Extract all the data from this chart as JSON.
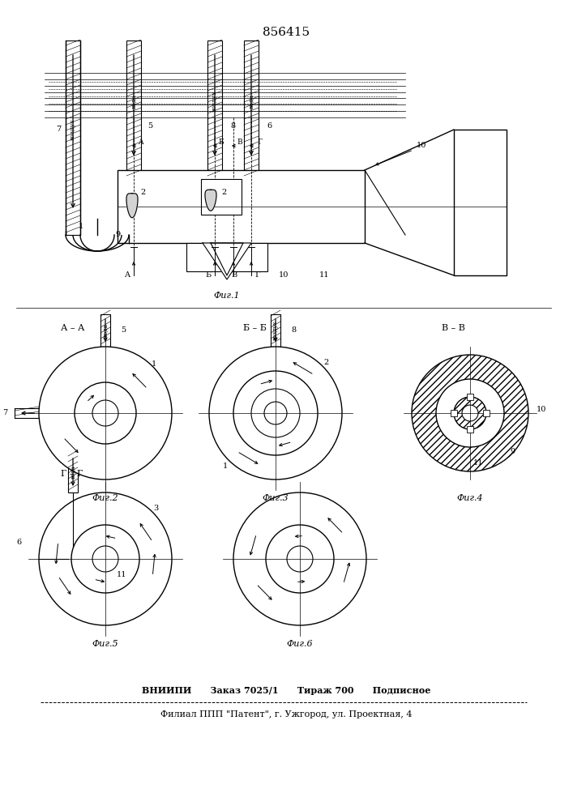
{
  "title": "856415",
  "footer_line1": "ВНИИПИ      Заказ 7025/1      Тираж 700      Подписное",
  "footer_line2": "Филиал ППП \"Патент\", г. Ужгород, ул. Проектная, 4",
  "bg_color": "#ffffff",
  "line_color": "#000000",
  "fig1_label": "Фиг.1",
  "fig2_label": "Фиг.2",
  "fig3_label": "Фиг.3",
  "fig4_label": "Фиг.4",
  "fig5_label": "Фиг.5",
  "fig6_label": "Фиг.6"
}
